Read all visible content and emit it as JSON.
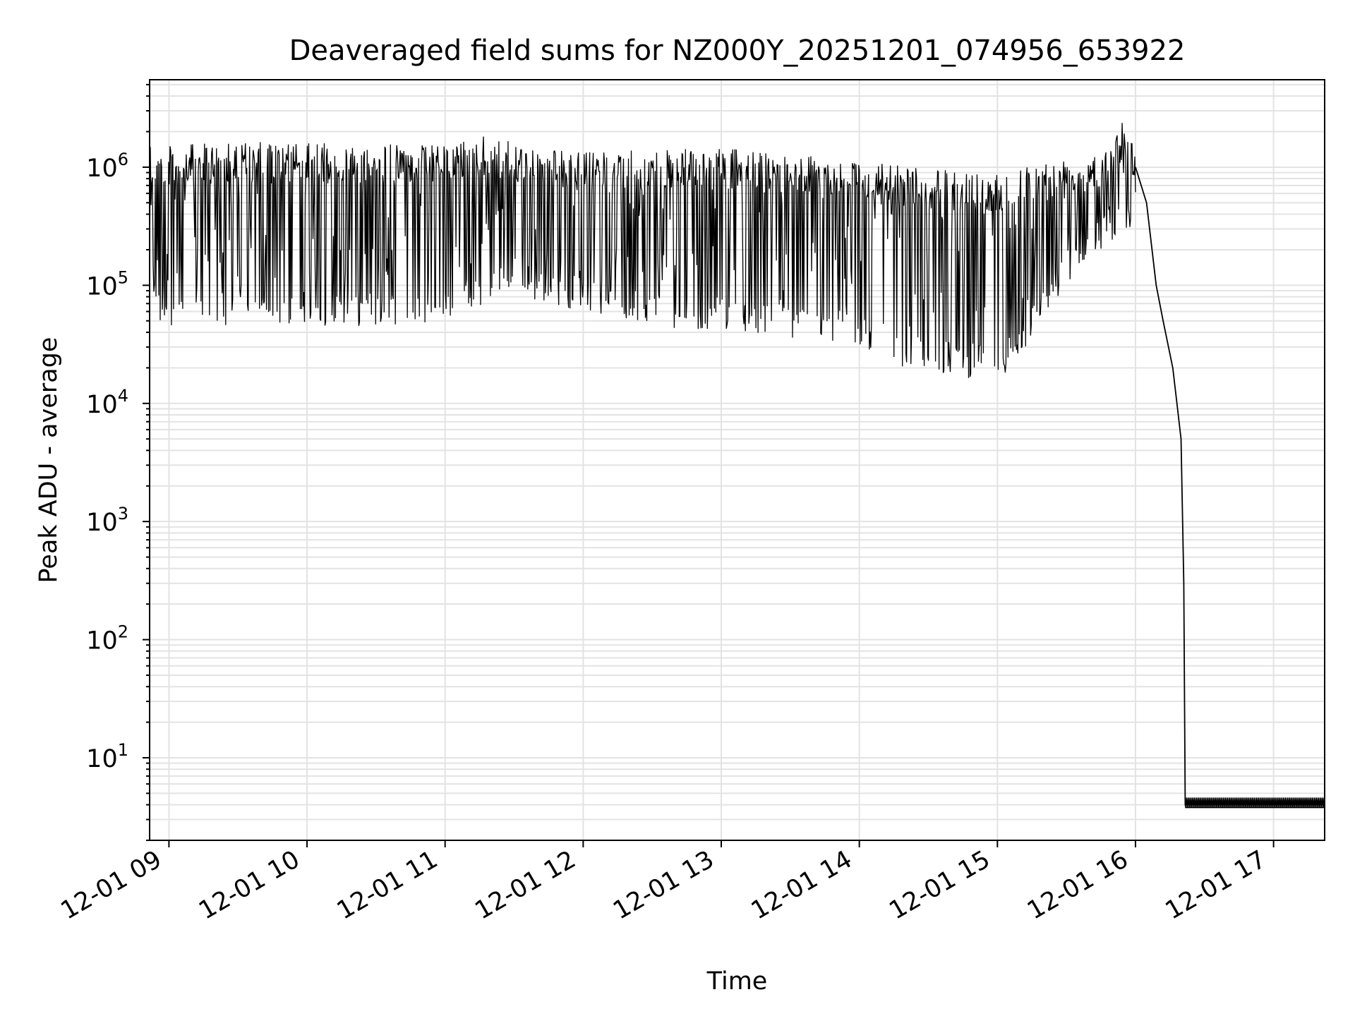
{
  "chart_data": {
    "type": "line",
    "title": "Deaveraged field sums for NZ000Y_20251201_074956_653922",
    "xlabel": "Time",
    "ylabel": "Peak ADU - average",
    "yscale": "log",
    "xlim_hours": [
      8.86,
      17.37
    ],
    "ylim": [
      2,
      5500000
    ],
    "grid": true,
    "x_tick_labels": [
      "12-01 09",
      "12-01 10",
      "12-01 11",
      "12-01 12",
      "12-01 13",
      "12-01 14",
      "12-01 15",
      "12-01 16",
      "12-01 17"
    ],
    "x_tick_hours": [
      9,
      10,
      11,
      12,
      13,
      14,
      15,
      16,
      17
    ],
    "y_tick_labels": [
      {
        "base": "10",
        "exp": "1"
      },
      {
        "base": "10",
        "exp": "2"
      },
      {
        "base": "10",
        "exp": "3"
      },
      {
        "base": "10",
        "exp": "4"
      },
      {
        "base": "10",
        "exp": "5"
      },
      {
        "base": "10",
        "exp": "6"
      }
    ],
    "y_tick_values": [
      10,
      100,
      1000,
      10000,
      100000,
      1000000
    ],
    "series": [
      {
        "name": "field sum",
        "color": "#000000",
        "envelope_upper": [
          {
            "t": 8.86,
            "v": 1500000
          },
          {
            "t": 9.5,
            "v": 1650000
          },
          {
            "t": 10.0,
            "v": 1600000
          },
          {
            "t": 10.5,
            "v": 1600000
          },
          {
            "t": 11.0,
            "v": 1550000
          },
          {
            "t": 11.3,
            "v": 1900000
          },
          {
            "t": 11.5,
            "v": 1600000
          },
          {
            "t": 12.0,
            "v": 1350000
          },
          {
            "t": 12.5,
            "v": 1400000
          },
          {
            "t": 13.0,
            "v": 1450000
          },
          {
            "t": 13.5,
            "v": 1300000
          },
          {
            "t": 14.0,
            "v": 1150000
          },
          {
            "t": 14.5,
            "v": 950000
          },
          {
            "t": 15.0,
            "v": 950000
          },
          {
            "t": 15.5,
            "v": 1250000
          },
          {
            "t": 15.8,
            "v": 1500000
          },
          {
            "t": 15.92,
            "v": 2800000
          },
          {
            "t": 16.0,
            "v": 1300000
          }
        ],
        "envelope_lower": [
          {
            "t": 8.86,
            "v": 45000
          },
          {
            "t": 9.5,
            "v": 45000
          },
          {
            "t": 10.0,
            "v": 45000
          },
          {
            "t": 10.5,
            "v": 45000
          },
          {
            "t": 11.0,
            "v": 50000
          },
          {
            "t": 11.5,
            "v": 80000
          },
          {
            "t": 12.0,
            "v": 60000
          },
          {
            "t": 12.5,
            "v": 45000
          },
          {
            "t": 13.0,
            "v": 40000
          },
          {
            "t": 13.5,
            "v": 35000
          },
          {
            "t": 14.0,
            "v": 30000
          },
          {
            "t": 14.3,
            "v": 20000
          },
          {
            "t": 14.7,
            "v": 17000
          },
          {
            "t": 15.0,
            "v": 15000
          },
          {
            "t": 15.3,
            "v": 40000
          },
          {
            "t": 15.6,
            "v": 150000
          },
          {
            "t": 15.85,
            "v": 250000
          },
          {
            "t": 16.0,
            "v": 300000
          }
        ],
        "tail": [
          {
            "t": 16.0,
            "v": 1000000
          },
          {
            "t": 16.08,
            "v": 500000
          },
          {
            "t": 16.15,
            "v": 100000
          },
          {
            "t": 16.2,
            "v": 50000
          },
          {
            "t": 16.27,
            "v": 20000
          },
          {
            "t": 16.3,
            "v": 10000
          },
          {
            "t": 16.33,
            "v": 5000
          },
          {
            "t": 16.35,
            "v": 300
          },
          {
            "t": 16.36,
            "v": 4
          },
          {
            "t": 17.37,
            "v": 4
          }
        ],
        "floor_band": [
          3.8,
          4.6
        ]
      }
    ]
  }
}
